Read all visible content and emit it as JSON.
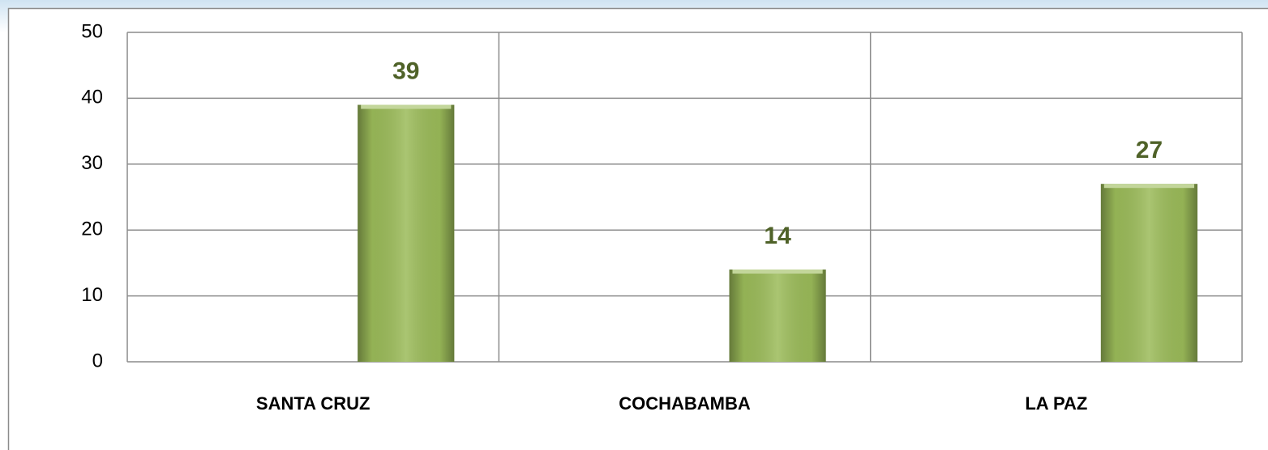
{
  "chart_data": {
    "type": "bar",
    "categories": [
      "SANTA CRUZ",
      "COCHABAMBA",
      "LA PAZ"
    ],
    "values": [
      39,
      14,
      27
    ],
    "color": "#9bbb59",
    "ylim": [
      0,
      50
    ],
    "yticks": [
      0,
      10,
      20,
      30,
      40,
      50
    ],
    "grid": true
  }
}
